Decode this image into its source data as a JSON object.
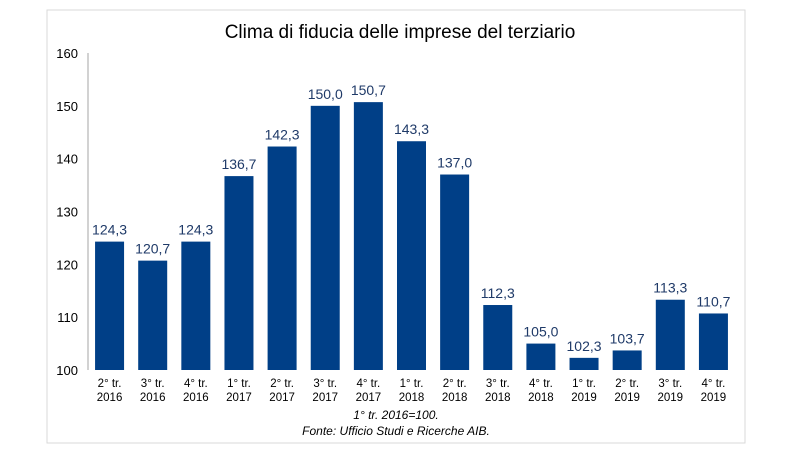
{
  "chart_data": {
    "type": "bar",
    "title": "Clima di fiducia delle imprese del terziario",
    "categories": [
      [
        "2° tr.",
        "2016"
      ],
      [
        "3° tr.",
        "2016"
      ],
      [
        "4° tr.",
        "2016"
      ],
      [
        "1° tr.",
        "2017"
      ],
      [
        "2° tr.",
        "2017"
      ],
      [
        "3° tr.",
        "2017"
      ],
      [
        "4° tr.",
        "2017"
      ],
      [
        "1° tr.",
        "2018"
      ],
      [
        "2° tr.",
        "2018"
      ],
      [
        "3° tr.",
        "2018"
      ],
      [
        "4° tr.",
        "2018"
      ],
      [
        "1° tr.",
        "2019"
      ],
      [
        "2° tr.",
        "2019"
      ],
      [
        "3° tr.",
        "2019"
      ],
      [
        "4° tr.",
        "2019"
      ]
    ],
    "values": [
      124.3,
      120.7,
      124.3,
      136.7,
      142.3,
      150.0,
      150.7,
      143.3,
      137.0,
      112.3,
      105.0,
      102.3,
      103.7,
      113.3,
      110.7
    ],
    "data_labels": [
      "124,3",
      "120,7",
      "124,3",
      "136,7",
      "142,3",
      "150,0",
      "150,7",
      "143,3",
      "137,0",
      "112,3",
      "105,0",
      "102,3",
      "103,7",
      "113,3",
      "110,7"
    ],
    "ylim": [
      100,
      160
    ],
    "yticks": [
      "100",
      "110",
      "120",
      "130",
      "140",
      "150",
      "160"
    ],
    "xlabel": "",
    "ylabel": "",
    "grid": false,
    "bar_color": "#003f87",
    "label_color": "#1f3a68"
  },
  "notes": {
    "base": "1° tr. 2016=100.",
    "source": "Fonte: Ufficio Studi e Ricerche AIB."
  }
}
